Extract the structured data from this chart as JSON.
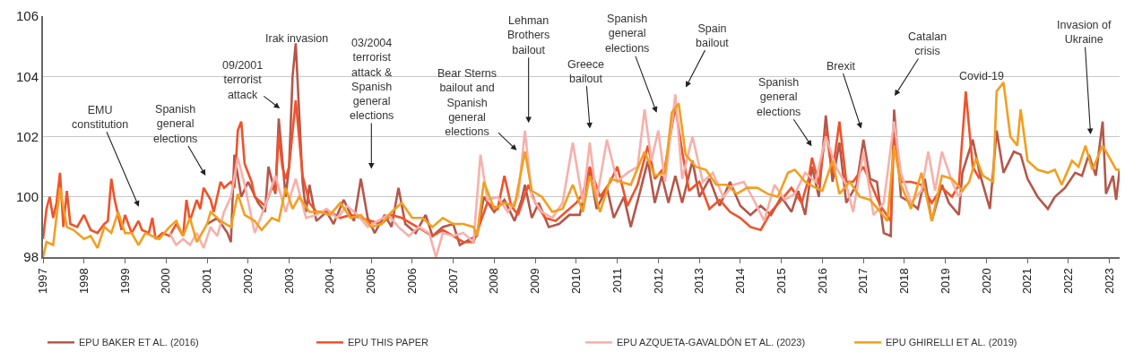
{
  "chart_data": {
    "type": "line",
    "xlim": [
      "1997-01",
      "2023-04"
    ],
    "xticks": [
      "1997",
      "1998",
      "1999",
      "2000",
      "2001",
      "2002",
      "2003",
      "2004",
      "2005",
      "2006",
      "2007",
      "2008",
      "2009",
      "2010",
      "2011",
      "2012",
      "2013",
      "2014",
      "2015",
      "2016",
      "2017",
      "2018",
      "2019",
      "2020",
      "2021",
      "2022",
      "2023"
    ],
    "ylim": [
      98,
      106
    ],
    "yticks": [
      98,
      100,
      102,
      104,
      106
    ],
    "grid": "y",
    "legend": "bottom",
    "marker": "none",
    "line_style": "solid",
    "series": [
      {
        "name": "EPU BAKER ET AL. (2016)",
        "color": "#b5574a",
        "x": [
          "2001-01",
          "2001-04",
          "2001-07",
          "2001-08",
          "2001-09",
          "2001-11",
          "2002-01",
          "2002-04",
          "2002-06",
          "2002-07",
          "2002-09",
          "2002-10",
          "2002-12",
          "2003-01",
          "2003-02",
          "2003-03",
          "2003-05",
          "2003-06",
          "2003-07",
          "2003-09",
          "2003-12",
          "2004-02",
          "2004-05",
          "2004-08",
          "2004-10",
          "2004-12",
          "2005-02",
          "2005-05",
          "2005-07",
          "2005-09",
          "2005-11",
          "2006-02",
          "2006-05",
          "2006-07",
          "2006-10",
          "2007-01",
          "2007-03",
          "2007-06",
          "2007-08",
          "2007-10",
          "2008-01",
          "2008-04",
          "2008-07",
          "2008-09",
          "2008-10",
          "2008-12",
          "2009-02",
          "2009-05",
          "2009-08",
          "2009-11",
          "2010-02",
          "2010-05",
          "2010-07",
          "2010-10",
          "2010-12",
          "2011-03",
          "2011-05",
          "2011-08",
          "2011-10",
          "2011-12",
          "2012-02",
          "2012-04",
          "2012-06",
          "2012-08",
          "2012-11",
          "2013-01",
          "2013-04",
          "2013-07",
          "2013-10",
          "2014-01",
          "2014-04",
          "2014-07",
          "2014-10",
          "2015-01",
          "2015-04",
          "2015-06",
          "2015-08",
          "2015-10",
          "2015-12",
          "2016-02",
          "2016-04",
          "2016-06",
          "2016-08",
          "2016-11",
          "2017-01",
          "2017-03",
          "2017-05",
          "2017-07",
          "2017-09",
          "2017-10",
          "2017-12",
          "2018-03",
          "2018-05",
          "2018-07",
          "2018-09",
          "2018-12",
          "2019-02",
          "2019-05",
          "2019-06",
          "2019-09",
          "2019-11",
          "2020-02",
          "2020-04",
          "2020-06",
          "2020-09",
          "2020-11",
          "2021-01",
          "2021-04",
          "2021-07",
          "2021-09",
          "2021-12",
          "2022-03",
          "2022-05",
          "2022-07",
          "2022-09",
          "2022-11",
          "2022-12",
          "2023-02",
          "2023-03",
          "2023-04"
        ],
        "values": [
          99.1,
          99.3,
          98.8,
          98.5,
          101.4,
          100.0,
          100.5,
          99.8,
          99.5,
          101.0,
          100.1,
          102.6,
          100.0,
          101.0,
          104.0,
          105.1,
          100.5,
          99.5,
          100.4,
          99.2,
          99.5,
          99.1,
          99.9,
          99.2,
          100.6,
          99.3,
          98.8,
          99.4,
          99.0,
          100.3,
          99.1,
          98.8,
          99.4,
          98.7,
          99.0,
          99.1,
          98.4,
          98.6,
          98.7,
          100.0,
          99.5,
          99.9,
          99.2,
          99.9,
          100.4,
          99.3,
          99.8,
          99.0,
          99.1,
          99.4,
          99.4,
          100.9,
          99.6,
          100.3,
          99.3,
          100.0,
          99.0,
          100.3,
          101.2,
          99.8,
          100.7,
          99.8,
          100.7,
          99.8,
          101.2,
          100.0,
          100.6,
          99.7,
          100.5,
          99.7,
          99.4,
          99.7,
          99.4,
          100.0,
          99.5,
          100.2,
          99.4,
          101.0,
          100.0,
          102.7,
          100.5,
          101.8,
          99.8,
          100.4,
          101.9,
          100.6,
          100.5,
          98.8,
          98.7,
          102.9,
          100.0,
          99.8,
          99.6,
          100.6,
          99.2,
          100.4,
          99.8,
          99.4,
          100.8,
          101.9,
          100.8,
          99.6,
          102.2,
          100.8,
          101.5,
          101.4,
          100.6,
          100.0,
          99.6,
          100.0,
          100.3,
          100.8,
          100.7,
          101.4,
          100.7,
          102.5,
          100.1,
          100.7,
          99.9,
          100.9
        ]
      },
      {
        "name": "EPU THIS PAPER",
        "color": "#f0522a",
        "x": [
          "1997-01",
          "1997-02",
          "1997-03",
          "1997-04",
          "1997-05",
          "1997-06",
          "1997-07",
          "1997-08",
          "1997-09",
          "1997-11",
          "1998-01",
          "1998-03",
          "1998-05",
          "1998-07",
          "1998-08",
          "1998-09",
          "1998-10",
          "1998-12",
          "1999-01",
          "1999-03",
          "1999-05",
          "1999-06",
          "1999-08",
          "1999-09",
          "1999-10",
          "1999-12",
          "2000-02",
          "2000-04",
          "2000-06",
          "2000-07",
          "2000-08",
          "2000-10",
          "2000-11",
          "2000-12",
          "2001-02",
          "2001-03",
          "2001-05",
          "2001-06",
          "2001-08",
          "2001-09",
          "2001-10",
          "2001-11",
          "2001-12",
          "2002-02",
          "2002-03",
          "2002-06",
          "2002-08",
          "2002-09",
          "2002-10",
          "2002-11",
          "2002-12",
          "2003-01",
          "2003-03",
          "2003-05",
          "2003-07",
          "2003-09",
          "2004-01",
          "2004-04",
          "2004-07",
          "2004-10",
          "2005-01",
          "2005-04",
          "2005-07",
          "2005-10",
          "2006-01",
          "2006-04",
          "2006-07",
          "2006-10",
          "2007-01",
          "2007-04",
          "2007-07",
          "2007-11",
          "2008-02",
          "2008-04",
          "2008-06",
          "2008-08",
          "2008-11",
          "2009-01",
          "2009-04",
          "2009-07",
          "2009-10",
          "2010-01",
          "2010-03",
          "2010-05",
          "2010-08",
          "2010-11",
          "2011-01",
          "2011-04",
          "2011-07",
          "2011-10",
          "2011-12",
          "2012-03",
          "2012-06",
          "2012-08",
          "2012-10",
          "2013-01",
          "2013-04",
          "2013-07",
          "2013-10",
          "2014-01",
          "2014-04",
          "2014-07",
          "2014-10",
          "2015-01",
          "2015-04",
          "2015-07",
          "2015-09",
          "2015-10",
          "2015-12",
          "2016-02",
          "2016-04",
          "2016-06",
          "2016-08",
          "2016-10",
          "2017-01",
          "2017-03",
          "2017-06",
          "2017-09",
          "2017-10",
          "2017-12",
          "2018-03",
          "2018-06",
          "2018-09",
          "2018-12",
          "2019-03",
          "2019-05",
          "2019-07",
          "2019-09",
          "2019-11"
        ],
        "values": [
          98.6,
          99.6,
          100.0,
          99.3,
          99.8,
          100.8,
          99.0,
          100.2,
          99.1,
          99.0,
          99.4,
          98.9,
          98.8,
          99.1,
          99.2,
          100.6,
          99.9,
          98.9,
          99.4,
          98.8,
          99.2,
          98.9,
          98.8,
          99.3,
          98.6,
          98.8,
          98.7,
          99.1,
          98.7,
          99.9,
          99.2,
          99.9,
          99.6,
          100.3,
          99.9,
          99.5,
          100.5,
          100.3,
          100.5,
          100.3,
          102.2,
          102.5,
          101.1,
          100.5,
          100.0,
          99.7,
          100.3,
          100.2,
          102.1,
          101.0,
          100.6,
          101.0,
          103.2,
          100.7,
          99.8,
          99.5,
          99.5,
          99.3,
          99.4,
          99.3,
          99.2,
          99.1,
          99.4,
          99.3,
          99.1,
          98.9,
          98.7,
          98.9,
          98.7,
          98.5,
          98.5,
          99.8,
          99.6,
          100.7,
          99.7,
          99.4,
          100.4,
          99.8,
          99.3,
          99.2,
          99.5,
          99.8,
          100.1,
          101.0,
          100.0,
          100.5,
          101.0,
          99.7,
          100.4,
          101.7,
          100.6,
          101.0,
          103.0,
          101.5,
          100.2,
          100.5,
          99.6,
          99.9,
          99.5,
          99.3,
          99.0,
          98.9,
          99.5,
          99.9,
          100.3,
          99.8,
          100.6,
          101.3,
          100.4,
          102.2,
          100.8,
          102.5,
          100.5,
          100.5,
          101.0,
          100.5,
          99.7,
          99.2,
          102.0,
          100.5,
          100.5,
          100.4,
          99.8,
          100.3,
          100.0,
          100.4,
          103.5,
          101.0,
          100.6
        ]
      },
      {
        "name": "EPU AZQUETA-GAVALDÓN ET AL. (2023)",
        "color": "#f7b0aa",
        "x": [
          "2000-02",
          "2000-04",
          "2000-06",
          "2000-08",
          "2000-10",
          "2000-12",
          "2001-02",
          "2001-04",
          "2001-06",
          "2001-08",
          "2001-10",
          "2001-12",
          "2002-03",
          "2002-06",
          "2002-09",
          "2002-12",
          "2003-03",
          "2003-06",
          "2003-09",
          "2003-12",
          "2004-03",
          "2004-06",
          "2004-09",
          "2004-12",
          "2005-03",
          "2005-06",
          "2005-09",
          "2005-12",
          "2006-03",
          "2006-06",
          "2006-08",
          "2006-10",
          "2007-01",
          "2007-04",
          "2007-07",
          "2007-09",
          "2007-11",
          "2008-02",
          "2008-05",
          "2008-08",
          "2008-10",
          "2008-12",
          "2009-03",
          "2009-06",
          "2009-09",
          "2009-12",
          "2010-03",
          "2010-05",
          "2010-07",
          "2010-10",
          "2011-01",
          "2011-04",
          "2011-07",
          "2011-09",
          "2011-11",
          "2012-01",
          "2012-03",
          "2012-06",
          "2012-08",
          "2012-11",
          "2013-02",
          "2013-05",
          "2013-08",
          "2013-11",
          "2014-02",
          "2014-05",
          "2014-08",
          "2014-11",
          "2015-02",
          "2015-05",
          "2015-08",
          "2015-11",
          "2016-02",
          "2016-05",
          "2016-08",
          "2016-10",
          "2017-01",
          "2017-04",
          "2017-07",
          "2017-10",
          "2017-12",
          "2018-03",
          "2018-06",
          "2018-08",
          "2018-10",
          "2018-12",
          "2019-03",
          "2019-05",
          "2019-07"
        ],
        "values": [
          98.8,
          98.4,
          98.6,
          98.4,
          98.8,
          98.3,
          99.0,
          98.7,
          99.5,
          100.0,
          101.3,
          100.4,
          98.8,
          99.7,
          100.7,
          99.5,
          100.6,
          99.3,
          99.4,
          99.6,
          99.3,
          99.7,
          99.4,
          99.0,
          99.2,
          99.4,
          99.0,
          98.7,
          99.0,
          98.8,
          98.0,
          98.8,
          98.7,
          98.8,
          98.5,
          101.4,
          99.9,
          100.0,
          99.5,
          100.0,
          102.2,
          100.0,
          99.5,
          99.3,
          99.8,
          101.8,
          99.8,
          101.8,
          99.9,
          101.9,
          100.5,
          100.8,
          101.0,
          102.9,
          101.2,
          102.2,
          100.5,
          103.4,
          100.6,
          102.0,
          100.5,
          100.8,
          100.0,
          100.4,
          100.5,
          99.9,
          99.2,
          100.4,
          99.9,
          100.1,
          100.8,
          100.5,
          102.0,
          101.0,
          100.4,
          99.5,
          101.5,
          99.4,
          99.8,
          102.5,
          100.8,
          99.8,
          100.2,
          101.5,
          100.2,
          101.5,
          100.5,
          100.0,
          100.4
        ]
      },
      {
        "name": "EPU GHIRELLI ET AL. (2019)",
        "color": "#f29f1f",
        "x": [
          "1997-01",
          "1997-02",
          "1997-04",
          "1997-06",
          "1997-08",
          "1997-10",
          "1998-01",
          "1998-03",
          "1998-05",
          "1998-07",
          "1998-09",
          "1998-11",
          "1999-01",
          "1999-03",
          "1999-05",
          "1999-07",
          "1999-09",
          "1999-11",
          "2000-02",
          "2000-04",
          "2000-06",
          "2000-08",
          "2000-10",
          "2001-01",
          "2001-02",
          "2001-05",
          "2001-08",
          "2001-10",
          "2001-12",
          "2002-03",
          "2002-05",
          "2002-08",
          "2002-10",
          "2002-12",
          "2003-02",
          "2003-04",
          "2003-07",
          "2003-10",
          "2004-01",
          "2004-04",
          "2004-07",
          "2004-10",
          "2005-01",
          "2005-04",
          "2005-07",
          "2005-10",
          "2006-01",
          "2006-04",
          "2006-07",
          "2006-10",
          "2007-01",
          "2007-04",
          "2007-07",
          "2007-08",
          "2007-10",
          "2008-01",
          "2008-04",
          "2008-07",
          "2008-10",
          "2008-12",
          "2009-03",
          "2009-06",
          "2009-09",
          "2009-12",
          "2010-03",
          "2010-05",
          "2010-08",
          "2010-11",
          "2011-02",
          "2011-05",
          "2011-09",
          "2011-12",
          "2012-03",
          "2012-05",
          "2012-07",
          "2012-09",
          "2012-12",
          "2013-03",
          "2013-06",
          "2013-09",
          "2013-12",
          "2014-03",
          "2014-06",
          "2014-09",
          "2014-12",
          "2015-03",
          "2015-05",
          "2015-08",
          "2015-11",
          "2016-01",
          "2016-04",
          "2016-06",
          "2016-09",
          "2016-12",
          "2017-03",
          "2017-06",
          "2017-08",
          "2017-10",
          "2017-12",
          "2018-03",
          "2018-06",
          "2018-09",
          "2018-12",
          "2019-03",
          "2019-06",
          "2019-08",
          "2019-10",
          "2019-12",
          "2020-03",
          "2020-04",
          "2020-06",
          "2020-08",
          "2020-10",
          "2020-11",
          "2021-01",
          "2021-04",
          "2021-07",
          "2021-09",
          "2021-11",
          "2022-02",
          "2022-04",
          "2022-06",
          "2022-08",
          "2022-11",
          "2023-01",
          "2023-03",
          "2023-04"
        ],
        "values": [
          98.0,
          98.5,
          98.4,
          100.3,
          99.0,
          98.9,
          98.6,
          98.7,
          98.3,
          99.0,
          98.8,
          99.5,
          98.8,
          98.8,
          98.4,
          98.8,
          98.7,
          98.6,
          99.0,
          99.2,
          98.7,
          99.3,
          98.5,
          99.1,
          99.5,
          99.2,
          99.0,
          100.1,
          99.4,
          99.2,
          98.9,
          99.3,
          99.2,
          100.3,
          99.6,
          100.0,
          99.5,
          99.5,
          99.4,
          99.8,
          99.3,
          99.4,
          99.0,
          99.1,
          99.5,
          99.8,
          99.3,
          99.3,
          99.0,
          99.3,
          99.1,
          99.1,
          99.0,
          98.7,
          100.5,
          99.6,
          99.8,
          99.7,
          101.5,
          100.2,
          100.0,
          99.5,
          99.6,
          100.4,
          99.5,
          100.7,
          99.5,
          100.6,
          100.5,
          100.4,
          101.5,
          100.7,
          100.8,
          102.8,
          103.1,
          101.4,
          101.0,
          100.9,
          100.4,
          100.4,
          100.1,
          100.3,
          100.3,
          100.1,
          100.0,
          100.8,
          100.9,
          100.5,
          100.3,
          100.2,
          101.2,
          100.1,
          100.5,
          100.0,
          99.9,
          99.5,
          99.2,
          101.7,
          100.4,
          99.6,
          100.8,
          99.2,
          100.7,
          100.6,
          100.2,
          100.5,
          101.3,
          100.7,
          100.5,
          103.5,
          103.8,
          102.0,
          101.7,
          102.9,
          101.2,
          100.9,
          100.8,
          100.9,
          100.4,
          101.2,
          101.0,
          101.7,
          100.9,
          101.7,
          101.3,
          100.9,
          100.9
        ]
      }
    ],
    "annotations": [
      "EMU\nconstitution",
      "Spanish\ngeneral\nelections",
      "09/2001\nterrorist\nattack",
      "Irak invasion",
      "03/2004\nterrorist\nattack &\nSpanish\ngeneral\nelections",
      "Bear Sterns\nbailout and\nSpanish\ngeneral\nelections",
      "Lehman\nBrothers\nbailout",
      "Greece\nbailout",
      "Spanish\ngeneral\nelections",
      "Spain\nbailout",
      "Spanish\ngeneral\nelections",
      "Brexit",
      "Catalan\ncrisis",
      "Covid-19",
      "Invasion of\nUkraine"
    ]
  }
}
